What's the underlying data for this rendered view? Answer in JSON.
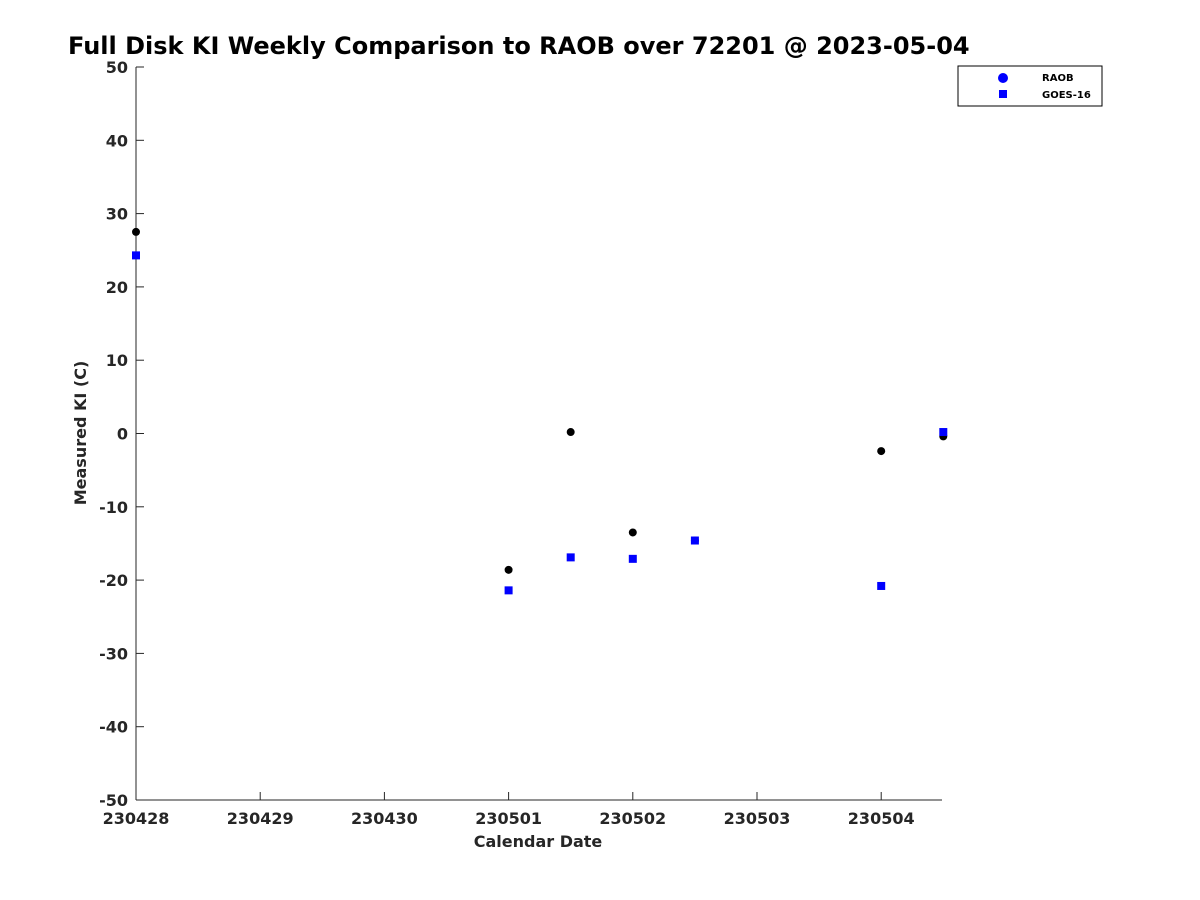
{
  "chart_data": {
    "type": "scatter",
    "title": "Full Disk KI Weekly Comparison to RAOB over 72201 @ 2023-05-04",
    "xlabel": "Calendar Date",
    "ylabel": "Measured KI (C)",
    "x_tick_labels": [
      "230428",
      "230429",
      "230430",
      "230501",
      "230502",
      "230503",
      "230504"
    ],
    "y_ticks": [
      50,
      40,
      30,
      20,
      10,
      0,
      -10,
      -20,
      -30,
      -40,
      -50
    ],
    "ylim": [
      -50,
      50
    ],
    "xlim": [
      "230428",
      "230504 12Z"
    ],
    "grid": false,
    "legend_position": "top-right",
    "series": [
      {
        "name": "RAOB",
        "marker": "circle",
        "color": "#000000",
        "legend_color": "#0000ff",
        "points": [
          {
            "x": "230428 00Z",
            "y": 27.5
          },
          {
            "x": "230501 00Z",
            "y": -18.6
          },
          {
            "x": "230501 12Z",
            "y": 0.2
          },
          {
            "x": "230502 00Z",
            "y": -13.5
          },
          {
            "x": "230502 12Z",
            "y": -14.6
          },
          {
            "x": "230504 00Z",
            "y": -2.4
          },
          {
            "x": "230504 12Z",
            "y": -0.4
          }
        ]
      },
      {
        "name": "GOES-16",
        "marker": "square",
        "color": "#0000ff",
        "legend_color": "#0000ff",
        "points": [
          {
            "x": "230428 00Z",
            "y": 24.3
          },
          {
            "x": "230501 00Z",
            "y": -21.4
          },
          {
            "x": "230501 12Z",
            "y": -16.9
          },
          {
            "x": "230502 00Z",
            "y": -17.1
          },
          {
            "x": "230502 12Z",
            "y": -14.6
          },
          {
            "x": "230504 00Z",
            "y": -20.8
          },
          {
            "x": "230504 12Z",
            "y": 0.2
          }
        ]
      }
    ]
  }
}
